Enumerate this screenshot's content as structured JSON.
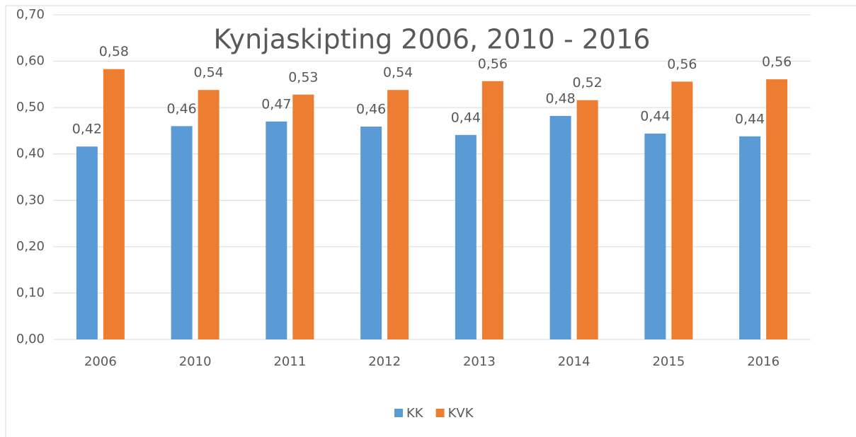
{
  "chart_data": {
    "type": "bar",
    "title": "Kynjaskipting 2006, 2010 - 2016",
    "categories": [
      "2006",
      "2010",
      "2011",
      "2012",
      "2013",
      "2014",
      "2015",
      "2016"
    ],
    "series": [
      {
        "name": "KK",
        "color": "#5b9bd5",
        "values": [
          0.416,
          0.46,
          0.47,
          0.459,
          0.441,
          0.482,
          0.444,
          0.438
        ],
        "value_labels": [
          "0,42",
          "0,46",
          "0,47",
          "0,46",
          "0,44",
          "0,48",
          "0,44",
          "0,44"
        ]
      },
      {
        "name": "KVK",
        "color": "#ed7d31",
        "values": [
          0.583,
          0.538,
          0.528,
          0.538,
          0.557,
          0.516,
          0.556,
          0.561
        ],
        "value_labels": [
          "0,58",
          "0,54",
          "0,53",
          "0,54",
          "0,56",
          "0,52",
          "0,56",
          "0,56"
        ]
      }
    ],
    "ylim": [
      0,
      0.7
    ],
    "yticks": [
      {
        "value": 0,
        "label": "0,00"
      },
      {
        "value": 0.1,
        "label": "0,10"
      },
      {
        "value": 0.2,
        "label": "0,20"
      },
      {
        "value": 0.3,
        "label": "0,30"
      },
      {
        "value": 0.4,
        "label": "0,40"
      },
      {
        "value": 0.5,
        "label": "0,50"
      },
      {
        "value": 0.6,
        "label": "0,60"
      },
      {
        "value": 0.7,
        "label": "0,70"
      }
    ],
    "grid": true,
    "legend": "bottom"
  }
}
